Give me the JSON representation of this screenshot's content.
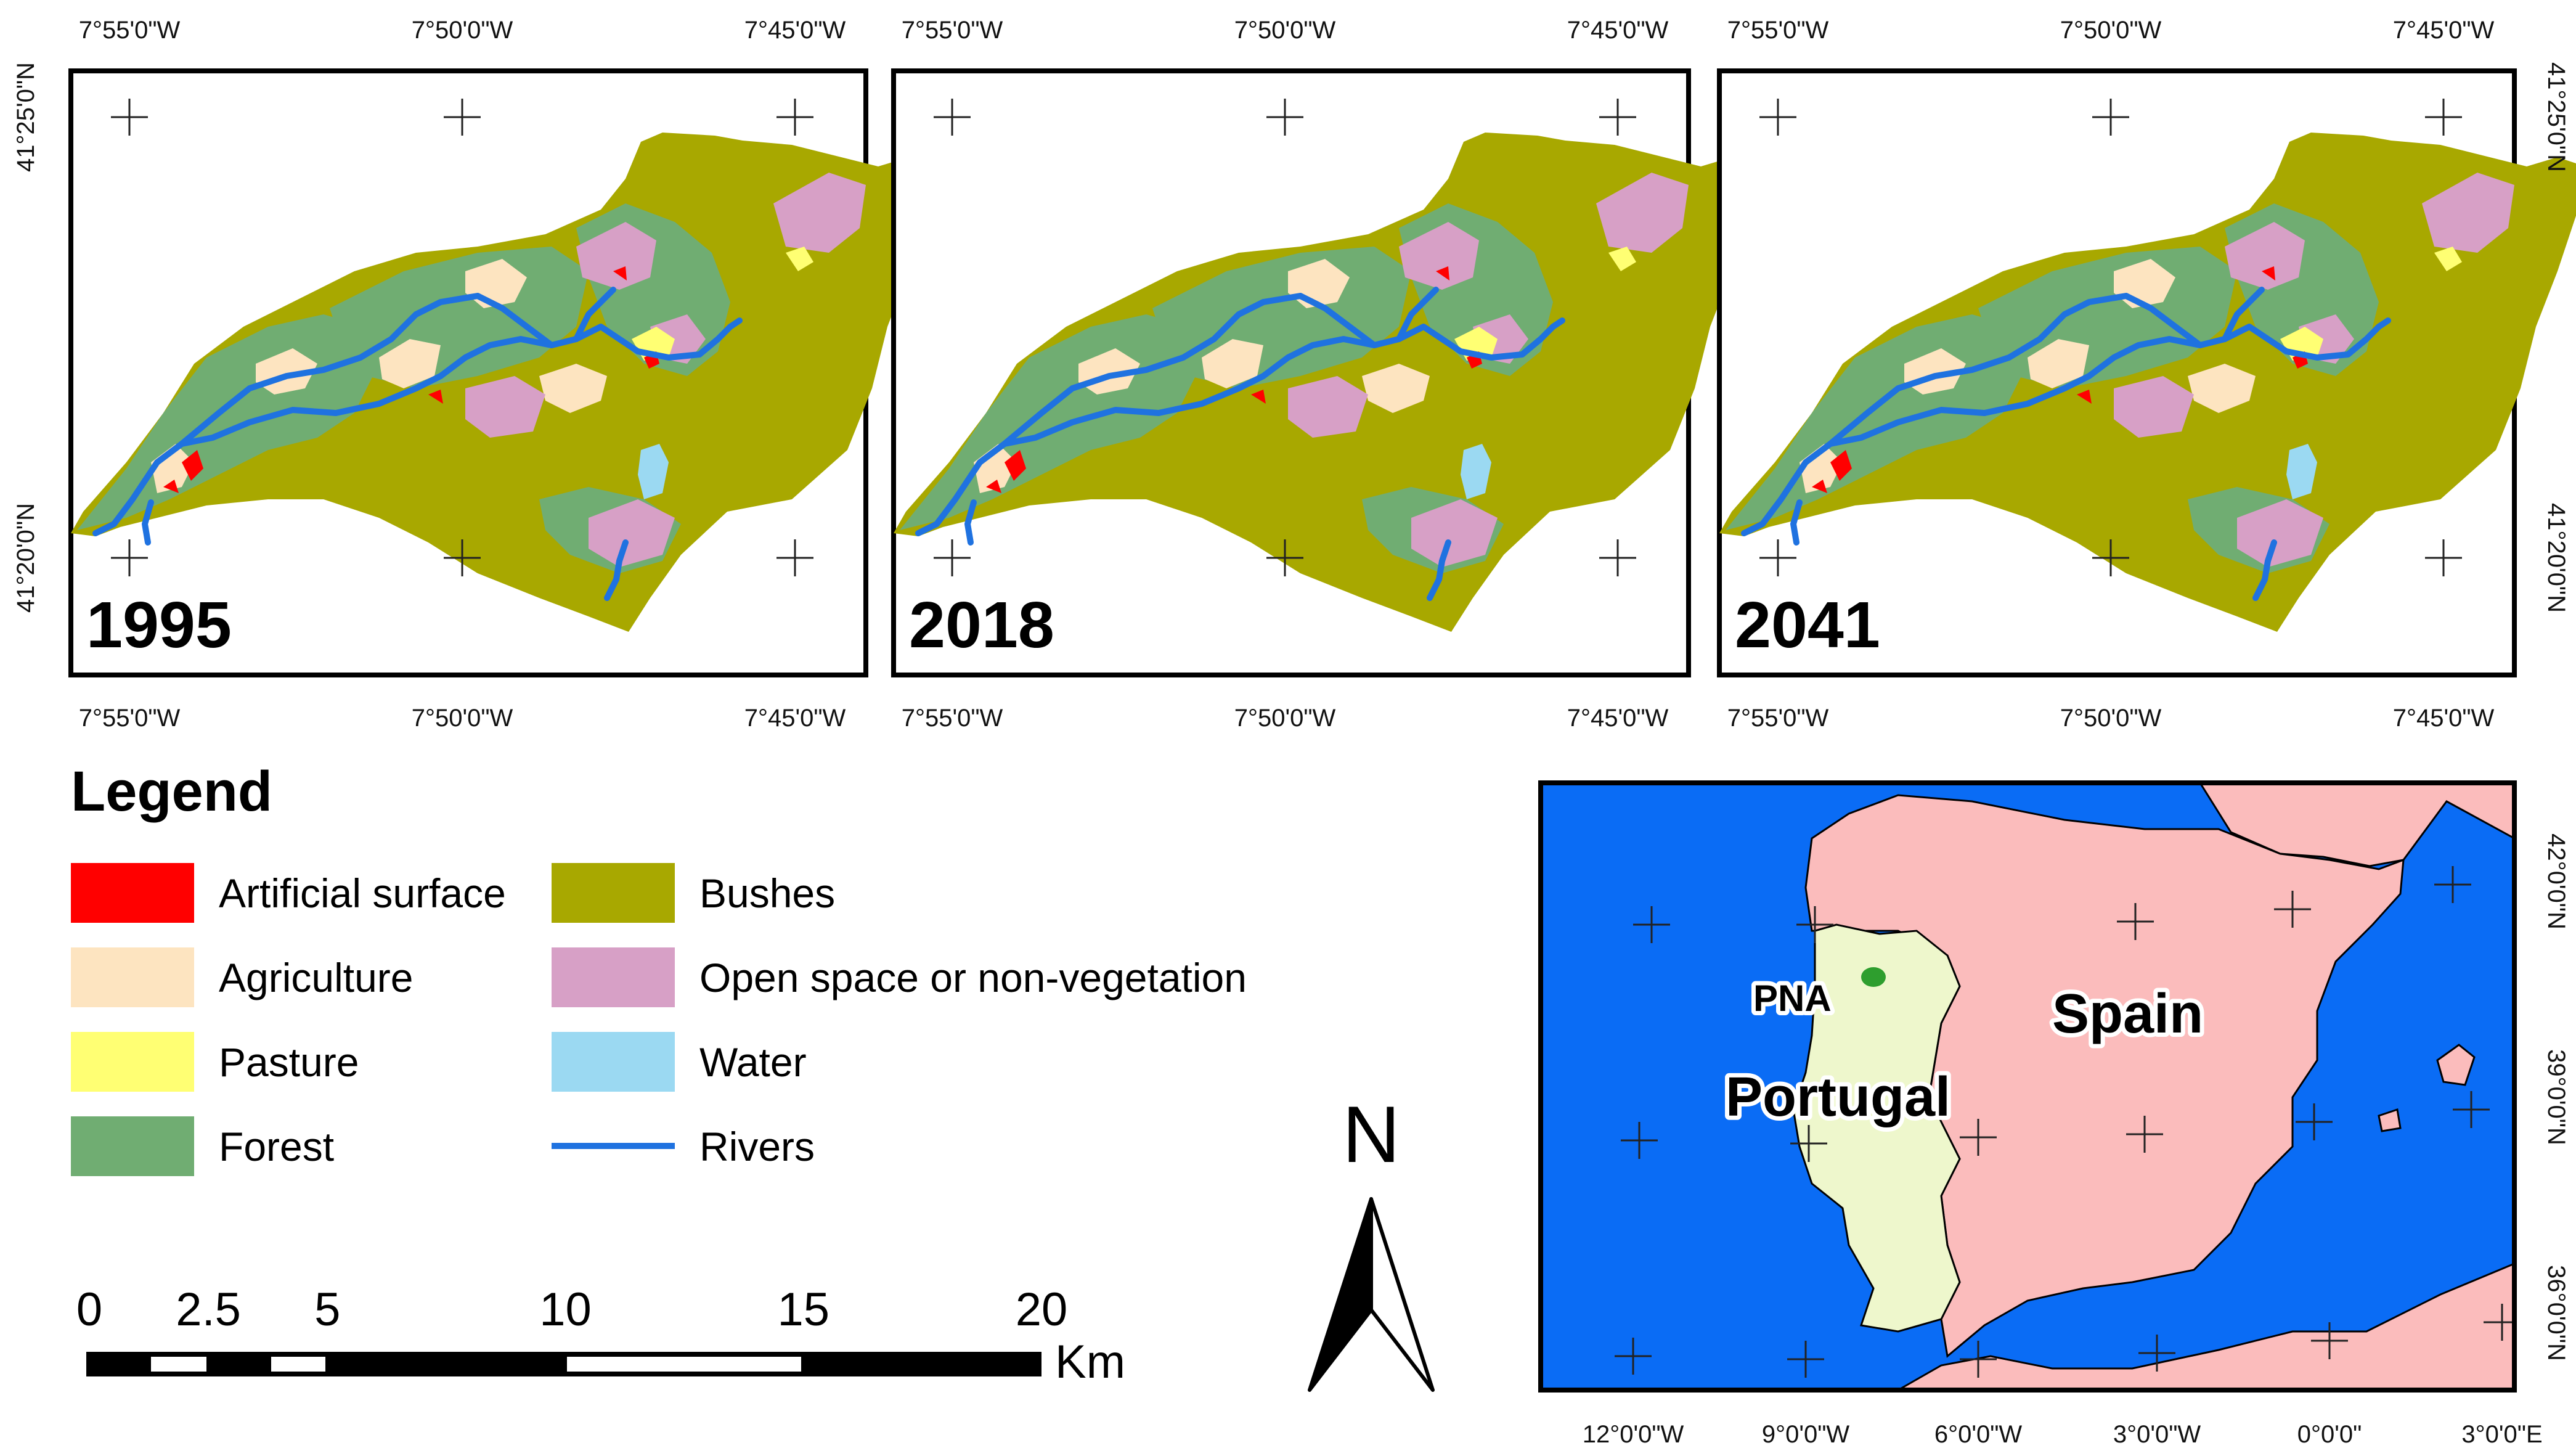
{
  "panels": [
    {
      "year": "1995"
    },
    {
      "year": "2018"
    },
    {
      "year": "2041"
    }
  ],
  "coords": {
    "lon_labels": [
      "7°55'0\"W",
      "7°50'0\"W",
      "7°45'0\"W"
    ],
    "lat_labels": [
      "41°25'0\"N",
      "41°20'0\"N"
    ]
  },
  "legend": {
    "title": "Legend",
    "items": [
      {
        "label": "Artificial surface",
        "color": "#ff0000"
      },
      {
        "label": "Agriculture",
        "color": "#fde4c0"
      },
      {
        "label": "Pasture",
        "color": "#ffff73"
      },
      {
        "label": "Forest",
        "color": "#70ad72"
      },
      {
        "label": "Bushes",
        "color": "#a8a800"
      },
      {
        "label": "Open space or non-vegetation",
        "color": "#d7a0c6"
      },
      {
        "label": "Water",
        "color": "#9bd9f2"
      },
      {
        "label": "Rivers",
        "color": "#1f72e0",
        "line": true
      }
    ]
  },
  "scale_bar": {
    "ticks": [
      "0",
      "2.5",
      "5",
      "10",
      "15",
      "20"
    ],
    "unit": "Km"
  },
  "north_arrow": {
    "label": "N"
  },
  "inset": {
    "labels": {
      "study_area": "PNA",
      "portugal": "Portugal",
      "spain": "Spain"
    },
    "lon_labels": [
      "12°0'0\"W",
      "9°0'0\"W",
      "6°0'0\"W",
      "3°0'0\"W",
      "0°0'0\"",
      "3°0'0\"E"
    ],
    "lat_labels": [
      "42°0'0\"N",
      "39°0'0\"N",
      "36°0'0\"N"
    ],
    "colors": {
      "sea": "#0a6cf5",
      "portugal": "#eef7cc",
      "spain": "#fbbcbc",
      "study_area": "#2e9e2e"
    }
  }
}
